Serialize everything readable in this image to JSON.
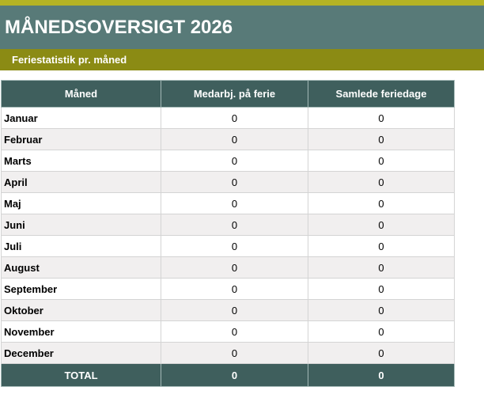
{
  "title": "MÅNEDSOVERSIGT 2026",
  "subtitle": "Feriestatistik pr. måned",
  "colors": {
    "top_strip": "#b5b324",
    "title_bg": "#587a78",
    "subtitle_bg": "#8b8b14",
    "header_bg": "#3f5f5d",
    "alt_row_bg": "#f1efef"
  },
  "table": {
    "columns": [
      "Måned",
      "Medarbj. på ferie",
      "Samlede feriedage"
    ],
    "rows": [
      {
        "month": "Januar",
        "employees": "0",
        "days": "0"
      },
      {
        "month": "Februar",
        "employees": "0",
        "days": "0"
      },
      {
        "month": "Marts",
        "employees": "0",
        "days": "0"
      },
      {
        "month": "April",
        "employees": "0",
        "days": "0"
      },
      {
        "month": "Maj",
        "employees": "0",
        "days": "0"
      },
      {
        "month": "Juni",
        "employees": "0",
        "days": "0"
      },
      {
        "month": "Juli",
        "employees": "0",
        "days": "0"
      },
      {
        "month": "August",
        "employees": "0",
        "days": "0"
      },
      {
        "month": "September",
        "employees": "0",
        "days": "0"
      },
      {
        "month": "Oktober",
        "employees": "0",
        "days": "0"
      },
      {
        "month": "November",
        "employees": "0",
        "days": "0"
      },
      {
        "month": "December",
        "employees": "0",
        "days": "0"
      }
    ],
    "total": {
      "label": "TOTAL",
      "employees": "0",
      "days": "0"
    }
  }
}
